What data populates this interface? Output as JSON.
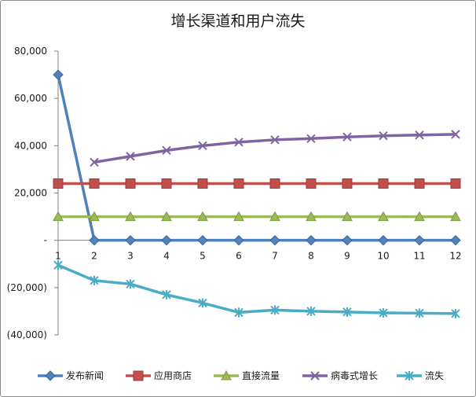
{
  "chart_data": {
    "type": "line",
    "title": "增长渠道和用户流失",
    "xlabel": "",
    "ylabel": "",
    "categories": [
      "1",
      "2",
      "3",
      "4",
      "5",
      "6",
      "7",
      "8",
      "9",
      "10",
      "11",
      "12"
    ],
    "ylim": [
      -40000,
      80000
    ],
    "yticks": [
      80000,
      60000,
      40000,
      20000,
      0,
      -20000,
      -40000
    ],
    "ytick_labels": [
      "80,000",
      "60,000",
      "40,000",
      "20,000",
      "-",
      "(20,000)",
      "(40,000)"
    ],
    "grid": false,
    "legend_position": "bottom",
    "series": [
      {
        "name": "发布新闻",
        "color": "#4f81bd",
        "marker": "diamond",
        "values": [
          70000,
          0,
          0,
          0,
          0,
          0,
          0,
          0,
          0,
          0,
          0,
          0
        ]
      },
      {
        "name": "应用商店",
        "color": "#c0504d",
        "marker": "square",
        "values": [
          24000,
          24000,
          24000,
          24000,
          24000,
          24000,
          24000,
          24000,
          24000,
          24000,
          24000,
          24000
        ]
      },
      {
        "name": "直接流量",
        "color": "#9bbb59",
        "marker": "triangle",
        "values": [
          10000,
          10000,
          10000,
          10000,
          10000,
          10000,
          10000,
          10000,
          10000,
          10000,
          10000,
          10000
        ]
      },
      {
        "name": "病毒式增长",
        "color": "#8064a2",
        "marker": "x",
        "values": [
          null,
          33000,
          35500,
          38000,
          40000,
          41500,
          42500,
          43000,
          43700,
          44200,
          44500,
          44800
        ]
      },
      {
        "name": "流失",
        "color": "#4bacc6",
        "marker": "star",
        "values": [
          -10500,
          -17000,
          -18500,
          -23000,
          -26500,
          -30500,
          -29500,
          -30000,
          -30300,
          -30700,
          -30800,
          -31000
        ]
      }
    ]
  }
}
